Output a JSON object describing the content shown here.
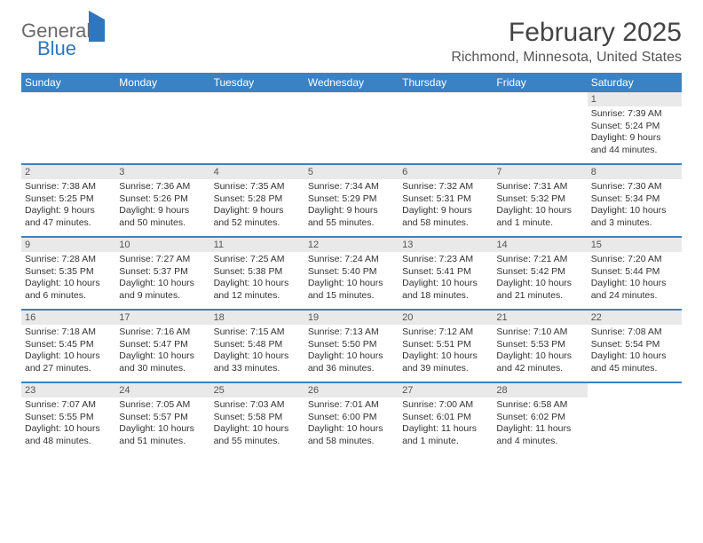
{
  "logo": {
    "line1": "General",
    "line2": "Blue"
  },
  "title": "February 2025",
  "location": "Richmond, Minnesota, United States",
  "colors": {
    "header_bar": "#3a82c4",
    "daynum_bg": "#e9e9e9",
    "text": "#333333",
    "title": "#444444",
    "logo_gray": "#6a6a6a",
    "logo_blue": "#2f76bc"
  },
  "daysOfWeek": [
    "Sunday",
    "Monday",
    "Tuesday",
    "Wednesday",
    "Thursday",
    "Friday",
    "Saturday"
  ],
  "weeks": [
    [
      null,
      null,
      null,
      null,
      null,
      null,
      {
        "n": "1",
        "sr": "7:39 AM",
        "ss": "5:24 PM",
        "dl": "9 hours and 44 minutes."
      }
    ],
    [
      {
        "n": "2",
        "sr": "7:38 AM",
        "ss": "5:25 PM",
        "dl": "9 hours and 47 minutes."
      },
      {
        "n": "3",
        "sr": "7:36 AM",
        "ss": "5:26 PM",
        "dl": "9 hours and 50 minutes."
      },
      {
        "n": "4",
        "sr": "7:35 AM",
        "ss": "5:28 PM",
        "dl": "9 hours and 52 minutes."
      },
      {
        "n": "5",
        "sr": "7:34 AM",
        "ss": "5:29 PM",
        "dl": "9 hours and 55 minutes."
      },
      {
        "n": "6",
        "sr": "7:32 AM",
        "ss": "5:31 PM",
        "dl": "9 hours and 58 minutes."
      },
      {
        "n": "7",
        "sr": "7:31 AM",
        "ss": "5:32 PM",
        "dl": "10 hours and 1 minute."
      },
      {
        "n": "8",
        "sr": "7:30 AM",
        "ss": "5:34 PM",
        "dl": "10 hours and 3 minutes."
      }
    ],
    [
      {
        "n": "9",
        "sr": "7:28 AM",
        "ss": "5:35 PM",
        "dl": "10 hours and 6 minutes."
      },
      {
        "n": "10",
        "sr": "7:27 AM",
        "ss": "5:37 PM",
        "dl": "10 hours and 9 minutes."
      },
      {
        "n": "11",
        "sr": "7:25 AM",
        "ss": "5:38 PM",
        "dl": "10 hours and 12 minutes."
      },
      {
        "n": "12",
        "sr": "7:24 AM",
        "ss": "5:40 PM",
        "dl": "10 hours and 15 minutes."
      },
      {
        "n": "13",
        "sr": "7:23 AM",
        "ss": "5:41 PM",
        "dl": "10 hours and 18 minutes."
      },
      {
        "n": "14",
        "sr": "7:21 AM",
        "ss": "5:42 PM",
        "dl": "10 hours and 21 minutes."
      },
      {
        "n": "15",
        "sr": "7:20 AM",
        "ss": "5:44 PM",
        "dl": "10 hours and 24 minutes."
      }
    ],
    [
      {
        "n": "16",
        "sr": "7:18 AM",
        "ss": "5:45 PM",
        "dl": "10 hours and 27 minutes."
      },
      {
        "n": "17",
        "sr": "7:16 AM",
        "ss": "5:47 PM",
        "dl": "10 hours and 30 minutes."
      },
      {
        "n": "18",
        "sr": "7:15 AM",
        "ss": "5:48 PM",
        "dl": "10 hours and 33 minutes."
      },
      {
        "n": "19",
        "sr": "7:13 AM",
        "ss": "5:50 PM",
        "dl": "10 hours and 36 minutes."
      },
      {
        "n": "20",
        "sr": "7:12 AM",
        "ss": "5:51 PM",
        "dl": "10 hours and 39 minutes."
      },
      {
        "n": "21",
        "sr": "7:10 AM",
        "ss": "5:53 PM",
        "dl": "10 hours and 42 minutes."
      },
      {
        "n": "22",
        "sr": "7:08 AM",
        "ss": "5:54 PM",
        "dl": "10 hours and 45 minutes."
      }
    ],
    [
      {
        "n": "23",
        "sr": "7:07 AM",
        "ss": "5:55 PM",
        "dl": "10 hours and 48 minutes."
      },
      {
        "n": "24",
        "sr": "7:05 AM",
        "ss": "5:57 PM",
        "dl": "10 hours and 51 minutes."
      },
      {
        "n": "25",
        "sr": "7:03 AM",
        "ss": "5:58 PM",
        "dl": "10 hours and 55 minutes."
      },
      {
        "n": "26",
        "sr": "7:01 AM",
        "ss": "6:00 PM",
        "dl": "10 hours and 58 minutes."
      },
      {
        "n": "27",
        "sr": "7:00 AM",
        "ss": "6:01 PM",
        "dl": "11 hours and 1 minute."
      },
      {
        "n": "28",
        "sr": "6:58 AM",
        "ss": "6:02 PM",
        "dl": "11 hours and 4 minutes."
      },
      null
    ]
  ],
  "labels": {
    "sunrise": "Sunrise:",
    "sunset": "Sunset:",
    "daylight": "Daylight:"
  }
}
